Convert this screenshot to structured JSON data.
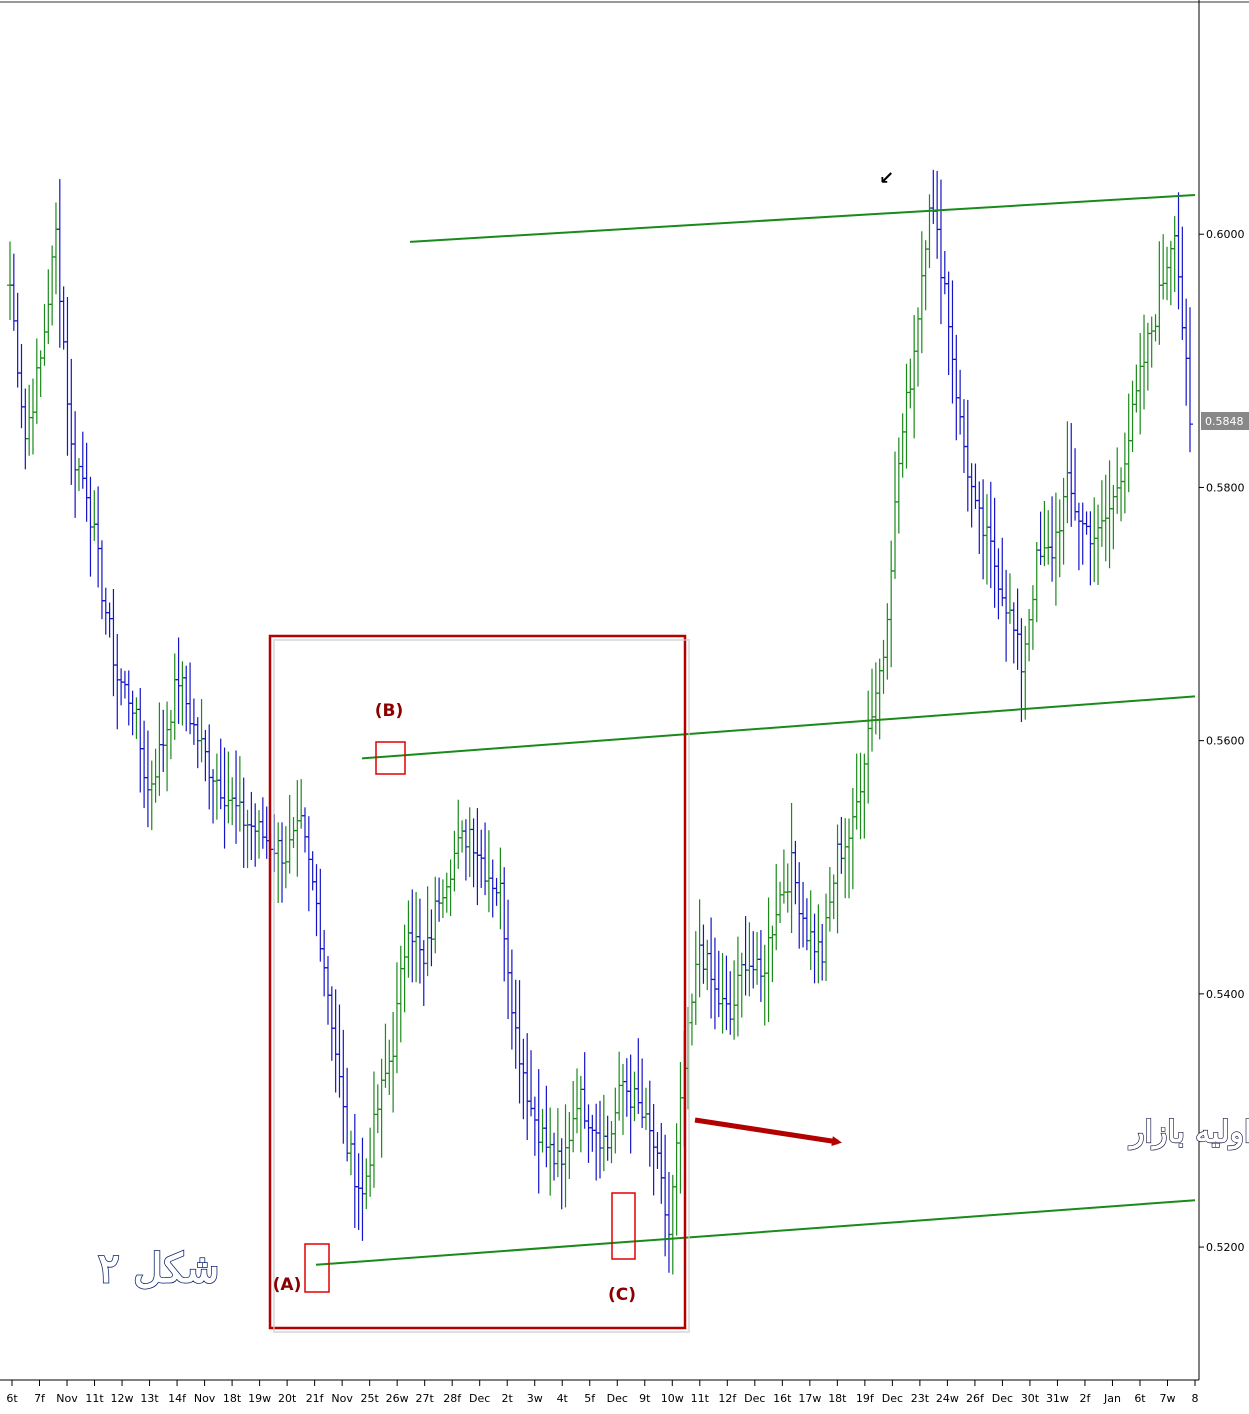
{
  "chart_data": {
    "type": "ohlc",
    "y_range": [
      0.5095,
      0.6185
    ],
    "y_ticks": [
      "0.6000",
      "0.5800",
      "0.5600",
      "0.5400",
      "0.5200"
    ],
    "current_price": "0.5848",
    "x_ticks": [
      "6t",
      "7f",
      "Nov",
      "11t",
      "12w",
      "13t",
      "14f",
      "Nov",
      "18t",
      "19w",
      "20t",
      "21f",
      "Nov",
      "25t",
      "26w",
      "27t",
      "28f",
      "Dec",
      "2t",
      "3w",
      "4t",
      "5f",
      "Dec",
      "9t",
      "10w",
      "11t",
      "12f",
      "Dec",
      "16t",
      "17w",
      "18t",
      "19f",
      "Dec",
      "23t",
      "24w",
      "26f",
      "Dec",
      "30t",
      "31w",
      "2f",
      "Jan",
      "6t",
      "7w",
      "8"
    ],
    "close_path": [
      0.596,
      0.584,
      0.59,
      0.6,
      0.583,
      0.58,
      0.572,
      0.565,
      0.563,
      0.556,
      0.56,
      0.565,
      0.561,
      0.558,
      0.556,
      0.554,
      0.553,
      0.552,
      0.551,
      0.553,
      0.547,
      0.538,
      0.528,
      0.524,
      0.531,
      0.536,
      0.546,
      0.542,
      0.548,
      0.551,
      0.553,
      0.55,
      0.548,
      0.537,
      0.531,
      0.528,
      0.526,
      0.532,
      0.53,
      0.528,
      0.533,
      0.531,
      0.528,
      0.521,
      0.534,
      0.544,
      0.54,
      0.538,
      0.543,
      0.541,
      0.547,
      0.55,
      0.545,
      0.543,
      0.551,
      0.553,
      0.561,
      0.567,
      0.582,
      0.591,
      0.603,
      0.596,
      0.585,
      0.578,
      0.575,
      0.571,
      0.566,
      0.574,
      0.575,
      0.58,
      0.577,
      0.576,
      0.579,
      0.584,
      0.59,
      0.595,
      0.601,
      0.585
    ],
    "channel_lines": [
      {
        "name": "upper",
        "from": [
          "26w",
          0.5994
        ],
        "to": [
          "8",
          0.6031
        ]
      },
      {
        "name": "middle",
        "from": [
          "25t",
          0.5586
        ],
        "to": [
          "8",
          0.5635
        ]
      },
      {
        "name": "lower",
        "from": [
          "21f",
          0.5186
        ],
        "to": [
          "8",
          0.5237
        ]
      }
    ],
    "annotations": [
      {
        "label": "(A)",
        "price": 0.5186
      },
      {
        "label": "(B)",
        "price": 0.5586
      },
      {
        "label": "(C)",
        "price": 0.5198
      }
    ],
    "bar_colors": {
      "up": "#1a8a1a",
      "down": "#1414c8",
      "channel": "#1a8a1a",
      "highlight": "#cc0000",
      "box": "#b30000"
    },
    "caption": "کانالیزه کردن حرکت اولیه بازار",
    "figure_label": "شکل ۲",
    "arrow_mark": "↙"
  }
}
